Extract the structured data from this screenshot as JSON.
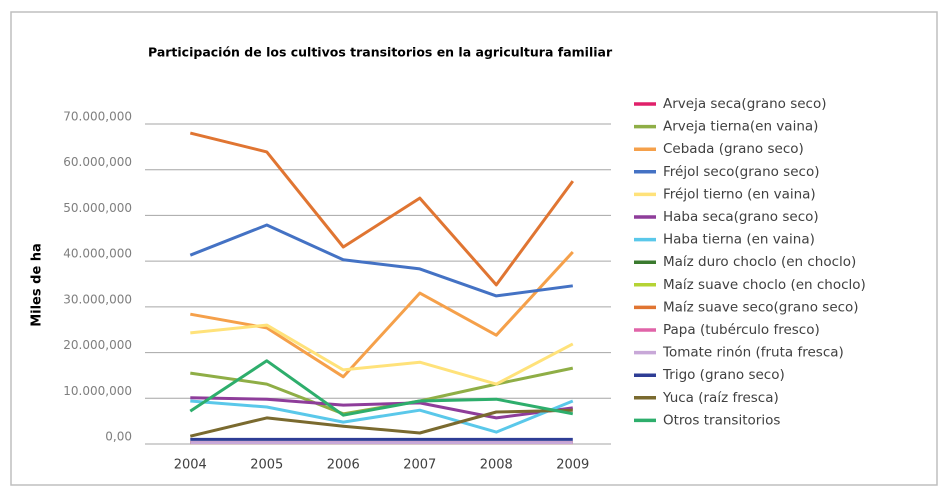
{
  "chart_data": {
    "type": "line",
    "title": "Participación de los cultivos transitorios en la agricultura familiar",
    "ylabel": "Miles de ha",
    "categories": [
      "2004",
      "2005",
      "2006",
      "2007",
      "2008",
      "2009"
    ],
    "ylim": [
      0,
      70000000
    ],
    "yticks": [
      {
        "value": 0,
        "label": "0,00"
      },
      {
        "value": 10000000,
        "label": "10.000,000"
      },
      {
        "value": 20000000,
        "label": "20.000,000"
      },
      {
        "value": 30000000,
        "label": "30.000,000"
      },
      {
        "value": 40000000,
        "label": "40.000,000"
      },
      {
        "value": 50000000,
        "label": "50.000,000"
      },
      {
        "value": 60000000,
        "label": "60.000,000"
      },
      {
        "value": 70000000,
        "label": "70.000,000"
      }
    ],
    "grid": true,
    "series": [
      {
        "name": "Arveja seca(grano seco)",
        "color": "#e0206a",
        "values": [
          300000,
          300000,
          300000,
          300000,
          300000,
          300000
        ]
      },
      {
        "name": "Arveja tierna(en vaina)",
        "color": "#8fae46",
        "values": [
          15500000,
          13100000,
          6600000,
          9400000,
          13100000,
          16600000
        ]
      },
      {
        "name": "Cebada (grano seco)",
        "color": "#f5a04a",
        "values": [
          28400000,
          25400000,
          14700000,
          33000000,
          23800000,
          42000000
        ]
      },
      {
        "name": "Fréjol seco(grano seco)",
        "color": "#4472c4",
        "values": [
          41300000,
          47900000,
          40300000,
          38300000,
          32400000,
          34600000
        ]
      },
      {
        "name": "Fréjol tierno (en vaina)",
        "color": "#ffe27a",
        "values": [
          24300000,
          26000000,
          16200000,
          17900000,
          13100000,
          21900000
        ]
      },
      {
        "name": "Haba seca(grano seco)",
        "color": "#8e3d9a",
        "values": [
          10100000,
          9800000,
          8500000,
          9000000,
          5700000,
          7900000
        ]
      },
      {
        "name": "Haba tierna (en vaina)",
        "color": "#5ac8ea",
        "values": [
          9400000,
          8100000,
          4800000,
          7400000,
          2600000,
          9400000
        ]
      },
      {
        "name": "Maíz duro choclo (en choclo)",
        "color": "#3a7a2e",
        "values": [
          300000,
          300000,
          300000,
          300000,
          300000,
          300000
        ]
      },
      {
        "name": "Maíz suave choclo (en choclo)",
        "color": "#b5d334",
        "values": [
          300000,
          300000,
          300000,
          300000,
          300000,
          300000
        ]
      },
      {
        "name": "Maíz suave seco(grano seco)",
        "color": "#e07532",
        "values": [
          68000000,
          63900000,
          43100000,
          53800000,
          34800000,
          57500000
        ]
      },
      {
        "name": "Papa (tubérculo fresco)",
        "color": "#e064a8",
        "values": [
          300000,
          300000,
          300000,
          300000,
          300000,
          300000
        ]
      },
      {
        "name": "Tomate rinón (fruta fresca)",
        "color": "#c8a8d8",
        "values": [
          300000,
          300000,
          300000,
          300000,
          300000,
          300000
        ]
      },
      {
        "name": "Trigo (grano seco)",
        "color": "#2e3d95",
        "values": [
          1000000,
          1000000,
          1000000,
          1000000,
          1000000,
          1000000
        ]
      },
      {
        "name": "Yuca (raíz fresca)",
        "color": "#7a6a2f",
        "values": [
          1700000,
          5700000,
          3900000,
          2400000,
          7000000,
          7400000
        ]
      },
      {
        "name": "Otros transitorios",
        "color": "#2eae6c",
        "values": [
          7200000,
          18200000,
          6300000,
          9400000,
          9800000,
          6600000
        ]
      }
    ]
  }
}
